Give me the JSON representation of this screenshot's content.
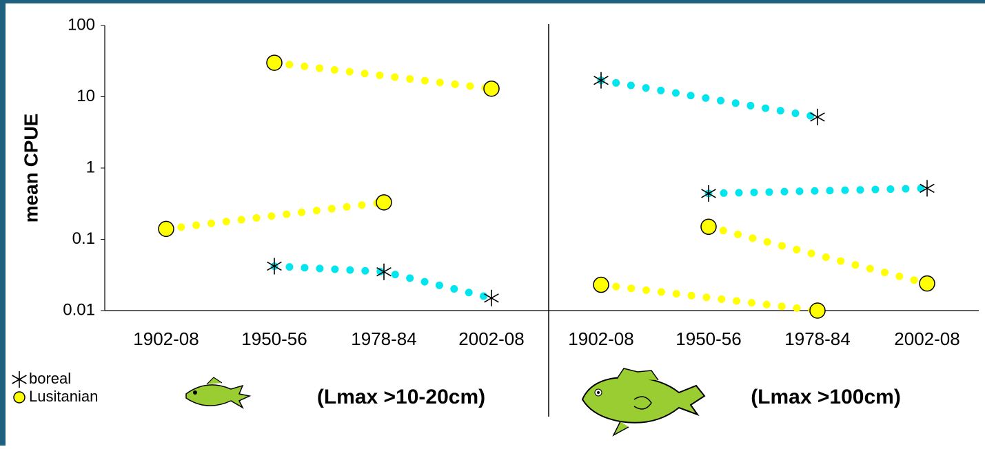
{
  "chart_data": {
    "type": "line",
    "y_label": "mean CPUE",
    "y_scale": "log",
    "categories": [
      "1902-08",
      "1950-56",
      "1978-84",
      "2002-08",
      "1902-08",
      "1950-56",
      "1978-84",
      "2002-08"
    ],
    "panel_labels": [
      "(Lmax >10-20cm)",
      "(Lmax >100cm)"
    ],
    "ylim": [
      0.01,
      100
    ],
    "yticks": [
      0.01,
      0.1,
      1,
      10,
      100
    ],
    "series": [
      {
        "name": "boreal",
        "marker": "asterisk",
        "color": "#00e5ee",
        "lines": [
          [
            null,
            0.042,
            0.035,
            0.015,
            null,
            null,
            null,
            null
          ],
          [
            null,
            null,
            null,
            null,
            17,
            null,
            5.2,
            null
          ],
          [
            null,
            null,
            null,
            null,
            null,
            0.44,
            null,
            0.52
          ]
        ]
      },
      {
        "name": "Lusitanian",
        "marker": "circle",
        "color": "#ffff00",
        "lines": [
          [
            null,
            30,
            null,
            13,
            null,
            null,
            null,
            null
          ],
          [
            0.14,
            null,
            0.33,
            null,
            null,
            null,
            null,
            null
          ],
          [
            null,
            null,
            null,
            null,
            null,
            0.15,
            null,
            0.024
          ],
          [
            null,
            null,
            null,
            null,
            0.023,
            null,
            0.01,
            null
          ]
        ]
      }
    ]
  }
}
